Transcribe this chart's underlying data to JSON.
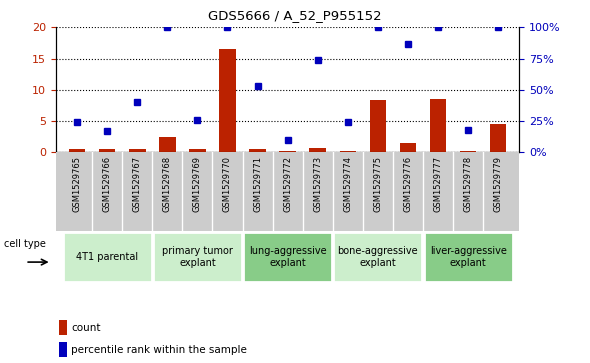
{
  "title": "GDS5666 / A_52_P955152",
  "samples": [
    "GSM1529765",
    "GSM1529766",
    "GSM1529767",
    "GSM1529768",
    "GSM1529769",
    "GSM1529770",
    "GSM1529771",
    "GSM1529772",
    "GSM1529773",
    "GSM1529774",
    "GSM1529775",
    "GSM1529776",
    "GSM1529777",
    "GSM1529778",
    "GSM1529779"
  ],
  "counts": [
    0.5,
    0.5,
    0.5,
    2.5,
    0.5,
    16.5,
    0.5,
    0.2,
    0.7,
    0.2,
    8.3,
    1.5,
    8.5,
    0.3,
    4.5
  ],
  "percentiles": [
    24,
    17,
    40,
    100,
    26,
    100,
    53,
    10,
    74,
    24,
    100,
    87,
    100,
    18,
    100
  ],
  "bar_color": "#bb2200",
  "dot_color": "#0000bb",
  "ylim_left": [
    0,
    20
  ],
  "ylim_right": [
    0,
    100
  ],
  "yticks_left": [
    0,
    5,
    10,
    15,
    20
  ],
  "yticks_right": [
    0,
    25,
    50,
    75,
    100
  ],
  "ytick_labels_right": [
    "0%",
    "25%",
    "50%",
    "75%",
    "100%"
  ],
  "groups": [
    {
      "label": "4T1 parental",
      "start": 0,
      "end": 2,
      "color": "#cceecc"
    },
    {
      "label": "primary tumor\nexplant",
      "start": 3,
      "end": 5,
      "color": "#cceecc"
    },
    {
      "label": "lung-aggressive\nexplant",
      "start": 6,
      "end": 8,
      "color": "#88cc88"
    },
    {
      "label": "bone-aggressive\nexplant",
      "start": 9,
      "end": 11,
      "color": "#cceecc"
    },
    {
      "label": "liver-aggressive\nexplant",
      "start": 12,
      "end": 14,
      "color": "#88cc88"
    }
  ],
  "cell_type_label": "cell type",
  "legend_count_label": "count",
  "legend_percentile_label": "percentile rank within the sample",
  "sample_area_color": "#cccccc",
  "fig_width": 5.9,
  "fig_height": 3.63,
  "dpi": 100
}
